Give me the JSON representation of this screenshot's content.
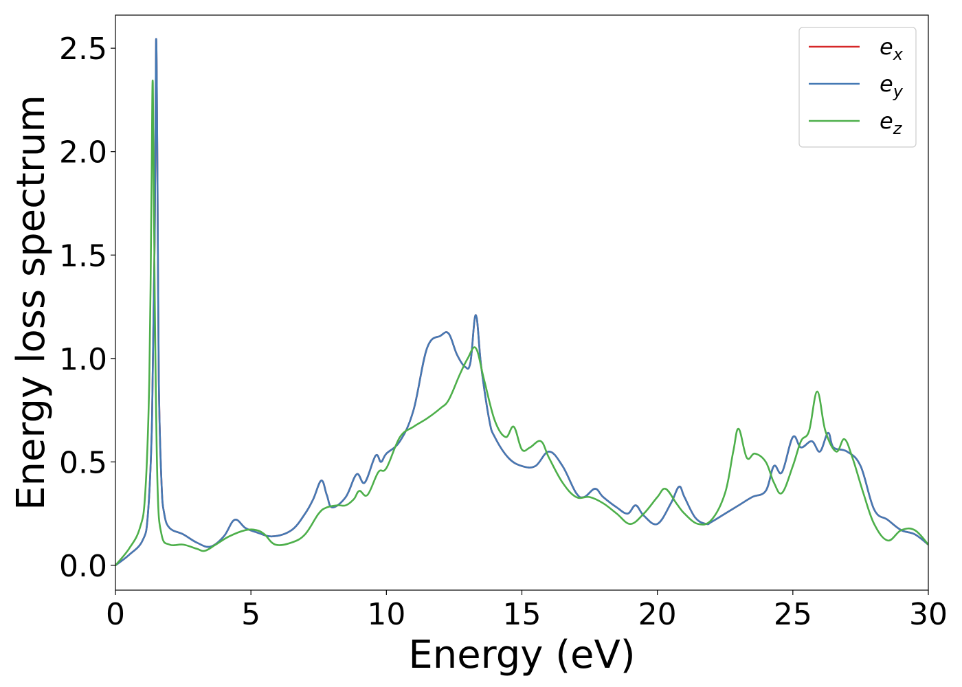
{
  "chart_data": {
    "type": "line",
    "title": "",
    "xlabel": "Energy (eV)",
    "ylabel": "Energy loss spectrum",
    "xlim": [
      0,
      30
    ],
    "ylim": [
      -0.12,
      2.66
    ],
    "xticks": [
      0,
      5,
      10,
      15,
      20,
      25,
      30
    ],
    "yticks": [
      0.0,
      0.5,
      1.0,
      1.5,
      2.0,
      2.5
    ],
    "grid": false,
    "legend_position": "top-right",
    "series": [
      {
        "name": "e_x",
        "legend_base": "e",
        "legend_sub": "x",
        "color": "#d62728",
        "x": [
          0,
          0.5,
          1.0,
          1.2,
          1.35,
          1.45,
          1.5,
          1.55,
          1.6,
          1.7,
          1.8,
          2.0,
          2.5,
          3.0,
          3.5,
          4.0,
          4.4,
          4.8,
          5.2,
          5.8,
          6.5,
          7.0,
          7.3,
          7.6,
          7.8,
          8.0,
          8.5,
          8.9,
          9.2,
          9.6,
          9.8,
          10.0,
          10.5,
          11.0,
          11.5,
          12.0,
          12.3,
          12.6,
          12.9,
          13.1,
          13.3,
          13.5,
          13.8,
          14.0,
          14.5,
          15.0,
          15.5,
          16.0,
          16.5,
          17.0,
          17.3,
          17.7,
          18.0,
          18.5,
          18.9,
          19.2,
          19.5,
          20.0,
          20.5,
          20.8,
          21.0,
          21.4,
          21.8,
          22.0,
          22.5,
          23.0,
          23.5,
          24.0,
          24.3,
          24.6,
          25.0,
          25.3,
          25.7,
          26.0,
          26.3,
          26.5,
          27.0,
          27.5,
          28.0,
          28.5,
          29.0,
          29.5,
          30.0
        ],
        "y": [
          0.0,
          0.05,
          0.12,
          0.25,
          0.7,
          1.6,
          2.54,
          1.9,
          0.9,
          0.4,
          0.25,
          0.18,
          0.15,
          0.11,
          0.09,
          0.14,
          0.22,
          0.18,
          0.16,
          0.14,
          0.17,
          0.25,
          0.32,
          0.41,
          0.34,
          0.28,
          0.33,
          0.44,
          0.4,
          0.53,
          0.5,
          0.54,
          0.6,
          0.75,
          1.05,
          1.11,
          1.12,
          1.02,
          0.96,
          0.98,
          1.21,
          0.96,
          0.7,
          0.62,
          0.52,
          0.48,
          0.48,
          0.55,
          0.48,
          0.35,
          0.33,
          0.37,
          0.33,
          0.28,
          0.25,
          0.29,
          0.24,
          0.2,
          0.3,
          0.38,
          0.33,
          0.23,
          0.2,
          0.21,
          0.25,
          0.29,
          0.33,
          0.36,
          0.48,
          0.45,
          0.62,
          0.57,
          0.6,
          0.55,
          0.64,
          0.57,
          0.55,
          0.48,
          0.27,
          0.22,
          0.17,
          0.15,
          0.1
        ]
      },
      {
        "name": "e_y",
        "legend_base": "e",
        "legend_sub": "y",
        "color": "#4479b4",
        "x": [
          0,
          0.5,
          1.0,
          1.2,
          1.35,
          1.45,
          1.5,
          1.55,
          1.6,
          1.7,
          1.8,
          2.0,
          2.5,
          3.0,
          3.5,
          4.0,
          4.4,
          4.8,
          5.2,
          5.8,
          6.5,
          7.0,
          7.3,
          7.6,
          7.8,
          8.0,
          8.5,
          8.9,
          9.2,
          9.6,
          9.8,
          10.0,
          10.5,
          11.0,
          11.5,
          12.0,
          12.3,
          12.6,
          12.9,
          13.1,
          13.3,
          13.5,
          13.8,
          14.0,
          14.5,
          15.0,
          15.5,
          16.0,
          16.5,
          17.0,
          17.3,
          17.7,
          18.0,
          18.5,
          18.9,
          19.2,
          19.5,
          20.0,
          20.5,
          20.8,
          21.0,
          21.4,
          21.8,
          22.0,
          22.5,
          23.0,
          23.5,
          24.0,
          24.3,
          24.6,
          25.0,
          25.3,
          25.7,
          26.0,
          26.3,
          26.5,
          27.0,
          27.5,
          28.0,
          28.5,
          29.0,
          29.5,
          30.0
        ],
        "y": [
          0.0,
          0.05,
          0.12,
          0.25,
          0.7,
          1.6,
          2.54,
          1.9,
          0.9,
          0.4,
          0.25,
          0.18,
          0.15,
          0.11,
          0.09,
          0.14,
          0.22,
          0.18,
          0.16,
          0.14,
          0.17,
          0.25,
          0.32,
          0.41,
          0.34,
          0.28,
          0.33,
          0.44,
          0.4,
          0.53,
          0.5,
          0.54,
          0.6,
          0.75,
          1.05,
          1.11,
          1.12,
          1.02,
          0.96,
          0.98,
          1.21,
          0.96,
          0.7,
          0.62,
          0.52,
          0.48,
          0.48,
          0.55,
          0.48,
          0.35,
          0.33,
          0.37,
          0.33,
          0.28,
          0.25,
          0.29,
          0.24,
          0.2,
          0.3,
          0.38,
          0.33,
          0.23,
          0.2,
          0.21,
          0.25,
          0.29,
          0.33,
          0.36,
          0.48,
          0.45,
          0.62,
          0.57,
          0.6,
          0.55,
          0.64,
          0.57,
          0.55,
          0.48,
          0.27,
          0.22,
          0.17,
          0.15,
          0.1
        ]
      },
      {
        "name": "e_z",
        "legend_base": "e",
        "legend_sub": "z",
        "color": "#4daf4a",
        "x": [
          0,
          0.5,
          0.9,
          1.1,
          1.25,
          1.33,
          1.38,
          1.45,
          1.55,
          1.7,
          2.0,
          2.5,
          3.0,
          3.3,
          3.7,
          4.2,
          4.8,
          5.2,
          5.5,
          5.9,
          6.5,
          7.0,
          7.5,
          7.8,
          8.2,
          8.5,
          8.8,
          9.0,
          9.3,
          9.7,
          10.0,
          10.5,
          11.0,
          11.5,
          12.0,
          12.3,
          12.7,
          13.0,
          13.3,
          13.6,
          14.0,
          14.4,
          14.7,
          15.0,
          15.3,
          15.7,
          16.0,
          16.5,
          17.0,
          17.5,
          18.0,
          18.5,
          19.0,
          19.5,
          20.0,
          20.3,
          20.7,
          21.0,
          21.5,
          22.0,
          22.5,
          22.8,
          23.0,
          23.3,
          23.6,
          24.0,
          24.3,
          24.6,
          25.0,
          25.3,
          25.6,
          25.9,
          26.2,
          26.6,
          26.9,
          27.2,
          27.6,
          28.0,
          28.5,
          29.0,
          29.5,
          30.0
        ],
        "y": [
          0.0,
          0.08,
          0.18,
          0.35,
          0.9,
          1.8,
          2.33,
          1.3,
          0.4,
          0.15,
          0.1,
          0.1,
          0.08,
          0.07,
          0.1,
          0.14,
          0.17,
          0.17,
          0.15,
          0.1,
          0.11,
          0.15,
          0.25,
          0.28,
          0.29,
          0.29,
          0.32,
          0.36,
          0.34,
          0.45,
          0.47,
          0.62,
          0.67,
          0.71,
          0.76,
          0.8,
          0.92,
          1.0,
          1.05,
          0.9,
          0.7,
          0.62,
          0.67,
          0.56,
          0.57,
          0.6,
          0.52,
          0.4,
          0.33,
          0.33,
          0.3,
          0.25,
          0.2,
          0.25,
          0.33,
          0.37,
          0.3,
          0.25,
          0.2,
          0.22,
          0.35,
          0.55,
          0.66,
          0.52,
          0.54,
          0.5,
          0.4,
          0.35,
          0.48,
          0.6,
          0.65,
          0.84,
          0.65,
          0.55,
          0.61,
          0.52,
          0.35,
          0.2,
          0.12,
          0.17,
          0.17,
          0.1
        ]
      }
    ]
  }
}
